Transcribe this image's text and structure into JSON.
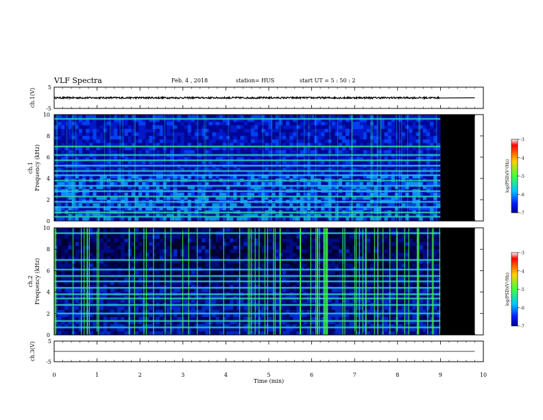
{
  "header": {
    "title": "VLF Spectra",
    "date": "Feb. 4 , 2018",
    "station": "station= HUS",
    "start": "start  UT =  5 : 50 : 2"
  },
  "chart_data": {
    "type": "heatmap",
    "xlabel": "Time (min)",
    "xlim": [
      0,
      10
    ],
    "x_ticks": [
      "0",
      "1",
      "2",
      "3",
      "4",
      "5",
      "6",
      "7",
      "8",
      "9",
      "10"
    ],
    "data_end_min": 9.0,
    "panels": [
      {
        "id": "ch1-waveform",
        "kind": "line",
        "ylabel": "ch.1(V)",
        "ylim": [
          -5,
          5
        ],
        "y_ticks": [
          "5",
          "-5"
        ],
        "baseline": 0,
        "noise_amplitude": 0.4
      },
      {
        "id": "ch1-spectrogram",
        "kind": "heatmap",
        "ylabel": "ch.1 Frequency (kHz)",
        "ylim": [
          0,
          10
        ],
        "y_ticks": [
          "0",
          "2",
          "4",
          "6",
          "8",
          "10"
        ],
        "hum_lines_khz": [
          0.4,
          0.8,
          1.3,
          1.8,
          2.3,
          2.8,
          3.3,
          3.8,
          4.3,
          4.7,
          5.2,
          5.7,
          6.2,
          7.0,
          9.6
        ],
        "colorbar": {
          "label": "log(PSD)(V²/Hz)",
          "ticks": [
            "-3",
            "-4",
            "-5",
            "-6",
            "-7"
          ],
          "range": [
            -7,
            -3
          ]
        }
      },
      {
        "id": "ch2-spectrogram",
        "kind": "heatmap",
        "ylabel": "ch.2 Frequency (kHz)",
        "ylim": [
          0,
          10
        ],
        "y_ticks": [
          "0",
          "2",
          "4",
          "6",
          "8",
          "10"
        ],
        "hum_lines_khz": [
          0.7,
          1.3,
          2.0,
          2.8,
          3.4,
          3.8,
          4.4,
          5.0,
          5.5,
          6.1,
          7.0,
          9.5
        ],
        "colorbar": {
          "label": "log(PSD)(V²/Hz)",
          "ticks": [
            "-3",
            "-4",
            "-5",
            "-6",
            "-7"
          ],
          "range": [
            -7,
            -3
          ]
        }
      },
      {
        "id": "ch3-waveform",
        "kind": "line",
        "ylabel": "ch.3(V)",
        "ylim": [
          -5,
          5
        ],
        "y_ticks": [
          "5",
          "-5"
        ],
        "baseline": 0,
        "noise_amplitude": 0
      }
    ],
    "colors": {
      "background_deep": "#00008a",
      "noise_blue": "#1040ff",
      "line_green": "#40ff40",
      "no_data": "#000000"
    }
  }
}
